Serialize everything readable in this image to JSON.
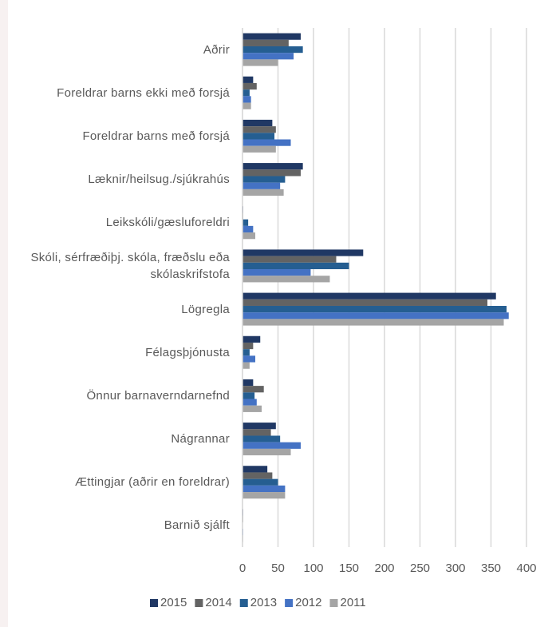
{
  "chart_data": {
    "type": "hbar",
    "categories": [
      "Aðrir",
      "Foreldrar barns ekki með forsjá",
      "Foreldrar barns með forsjá",
      "Læknir/heilsug./sjúkrahús",
      "Leikskóli/gæsluforeldri",
      "Skóli, sérfræðiþj. skóla, fræðslu eða skólaskrifstofa",
      "Lögregla",
      "Félagsþjónusta",
      "Önnur barnaverndarnefnd",
      "Nágrannar",
      "Ættingjar (aðrir en foreldrar)",
      "Barnið sjálft"
    ],
    "series": [
      {
        "name": "2015",
        "color": "#203864",
        "values": [
          82,
          15,
          42,
          85,
          1,
          170,
          357,
          25,
          15,
          47,
          35,
          1
        ]
      },
      {
        "name": "2014",
        "color": "#636363",
        "values": [
          65,
          20,
          47,
          82,
          1,
          132,
          345,
          15,
          30,
          40,
          42,
          1
        ]
      },
      {
        "name": "2013",
        "color": "#255e91",
        "values": [
          85,
          10,
          45,
          60,
          8,
          150,
          372,
          10,
          17,
          53,
          50,
          0
        ]
      },
      {
        "name": "2012",
        "color": "#4472c4",
        "values": [
          72,
          12,
          68,
          53,
          15,
          96,
          375,
          18,
          20,
          82,
          60,
          1
        ]
      },
      {
        "name": "2011",
        "color": "#a5a5a5",
        "values": [
          50,
          12,
          47,
          58,
          18,
          123,
          368,
          10,
          27,
          68,
          60,
          1
        ]
      }
    ],
    "xlim": [
      0,
      400
    ],
    "xticks": [
      0,
      50,
      100,
      150,
      200,
      250,
      300,
      350,
      400
    ],
    "grid": true,
    "legend": "bottom"
  }
}
